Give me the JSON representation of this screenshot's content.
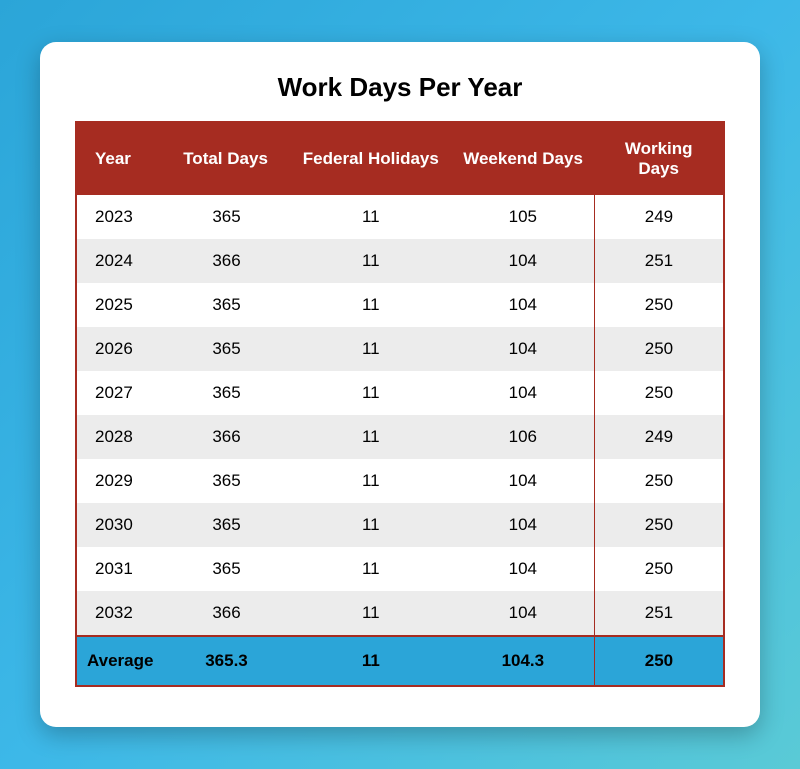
{
  "title": "Work Days Per Year",
  "colors": {
    "header_bg": "#a62c21",
    "header_text": "#ffffff",
    "row_odd_bg": "#ffffff",
    "row_even_bg": "#ececec",
    "average_bg": "#2ba5d8",
    "text_color": "#000000",
    "card_bg": "#ffffff",
    "page_gradient_start": "#2ba5d8",
    "page_gradient_end": "#5acad6"
  },
  "typography": {
    "title_fontsize": 26,
    "header_fontsize": 17,
    "cell_fontsize": 17,
    "title_weight": 700,
    "header_weight": 700,
    "average_weight": 700
  },
  "table": {
    "type": "table",
    "columns": [
      {
        "key": "year",
        "label": "Year",
        "align": "left",
        "width_pct": 15
      },
      {
        "key": "total_days",
        "label": "Total Days",
        "align": "center",
        "width_pct": 18
      },
      {
        "key": "federal_holidays",
        "label": "Federal Holidays",
        "align": "center",
        "width_pct": 25
      },
      {
        "key": "weekend_days",
        "label": "Weekend Days",
        "align": "center",
        "width_pct": 22
      },
      {
        "key": "working_days",
        "label": "Working Days",
        "align": "center",
        "width_pct": 20,
        "column_divider": true
      }
    ],
    "rows": [
      {
        "year": "2023",
        "total_days": "365",
        "federal_holidays": "11",
        "weekend_days": "105",
        "working_days": "249"
      },
      {
        "year": "2024",
        "total_days": "366",
        "federal_holidays": "11",
        "weekend_days": "104",
        "working_days": "251"
      },
      {
        "year": "2025",
        "total_days": "365",
        "federal_holidays": "11",
        "weekend_days": "104",
        "working_days": "250"
      },
      {
        "year": "2026",
        "total_days": "365",
        "federal_holidays": "11",
        "weekend_days": "104",
        "working_days": "250"
      },
      {
        "year": "2027",
        "total_days": "365",
        "federal_holidays": "11",
        "weekend_days": "104",
        "working_days": "250"
      },
      {
        "year": "2028",
        "total_days": "366",
        "federal_holidays": "11",
        "weekend_days": "106",
        "working_days": "249"
      },
      {
        "year": "2029",
        "total_days": "365",
        "federal_holidays": "11",
        "weekend_days": "104",
        "working_days": "250"
      },
      {
        "year": "2030",
        "total_days": "365",
        "federal_holidays": "11",
        "weekend_days": "104",
        "working_days": "250"
      },
      {
        "year": "2031",
        "total_days": "365",
        "federal_holidays": "11",
        "weekend_days": "104",
        "working_days": "250"
      },
      {
        "year": "2032",
        "total_days": "366",
        "federal_holidays": "11",
        "weekend_days": "104",
        "working_days": "251"
      }
    ],
    "average": {
      "label": "Average",
      "total_days": "365.3",
      "federal_holidays": "11",
      "weekend_days": "104.3",
      "working_days": "250"
    }
  }
}
